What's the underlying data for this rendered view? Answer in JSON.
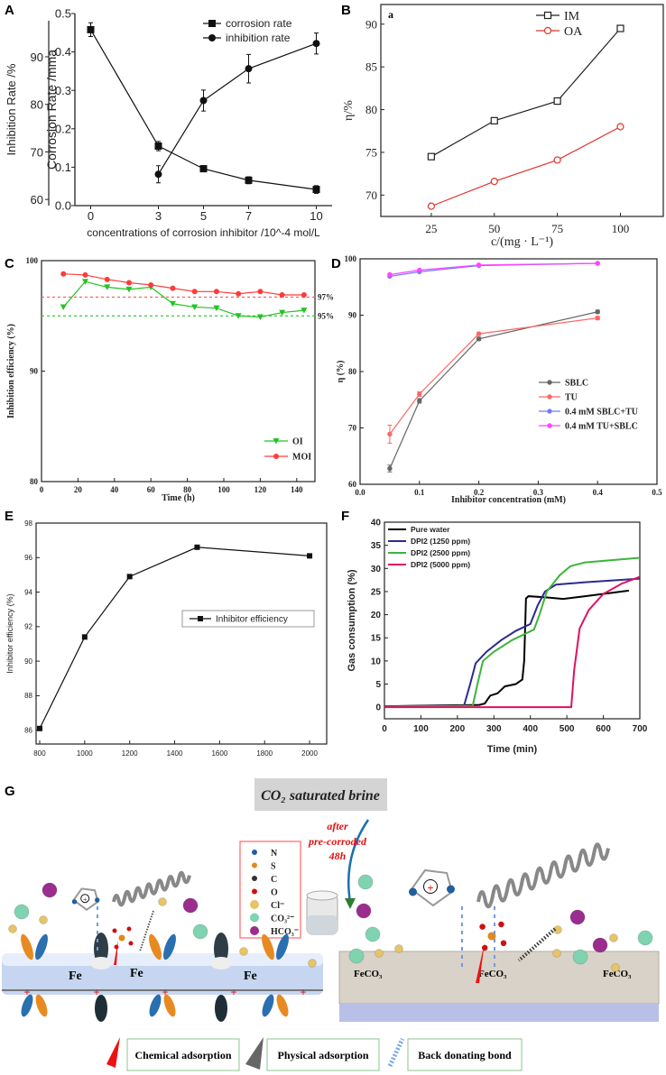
{
  "panel_labels": {
    "a": "A",
    "b": "B",
    "c": "C",
    "d": "D",
    "e": "E",
    "f": "F",
    "g": "G"
  },
  "chart_data": [
    {
      "panel": "A",
      "type": "line",
      "title": "",
      "xlabel": "concentrations of corrosion inhibitor /10^-4 mol/L",
      "ylabel": "Corrosion Rate /mma",
      "y2label": "Inhibition Rate /%",
      "xlim": [
        -0.7,
        10.7
      ],
      "ylim": [
        0,
        0.5
      ],
      "y2lim": [
        58.7,
        99.1
      ],
      "xticks": [
        0,
        3,
        5,
        7,
        10
      ],
      "xtick_labels": [
        "0",
        "3",
        "5",
        "7",
        "10"
      ],
      "yticks": [
        0,
        0.1,
        0.2,
        0.3,
        0.4,
        0.5
      ],
      "ytick_labels": [
        "0.0",
        "0.1",
        "0.2",
        "0.3",
        "0.4",
        "0.5"
      ],
      "y2ticks": [
        60,
        70,
        80,
        90
      ],
      "y2tick_labels": [
        "60",
        "70",
        "80",
        "90"
      ],
      "grid": false,
      "legend_position": "top-right",
      "series": [
        {
          "name": "corrosion rate",
          "color": "#111111",
          "marker": "square",
          "axis": "y",
          "x": [
            0,
            3,
            5,
            7,
            10
          ],
          "y": [
            0.458,
            0.155,
            0.096,
            0.066,
            0.042
          ],
          "yerr": [
            0.018,
            0.012,
            0.008,
            0.009,
            0.01
          ]
        },
        {
          "name": "inhibition rate",
          "color": "#111111",
          "marker": "dot",
          "axis": "y2",
          "x": [
            3,
            5,
            7,
            10
          ],
          "y": [
            65.3,
            80.8,
            87.5,
            92.8
          ],
          "yerr": [
            1.8,
            2.2,
            3.0,
            2.2
          ]
        }
      ]
    },
    {
      "panel": "B",
      "type": "line",
      "title": "",
      "annotation": "a",
      "xlabel": "c/(mg · L⁻¹)",
      "ylabel": "η/%",
      "xlim": [
        5,
        117
      ],
      "ylim": [
        67.5,
        92.3
      ],
      "xticks": [
        25,
        50,
        75,
        100
      ],
      "xtick_labels": [
        "25",
        "50",
        "75",
        "100"
      ],
      "yticks": [
        70,
        75,
        80,
        85,
        90
      ],
      "ytick_labels": [
        "70",
        "75",
        "80",
        "85",
        "90"
      ],
      "grid": false,
      "legend_position": "top-center",
      "series": [
        {
          "name": "IM",
          "color": "#222222",
          "marker": "open-square",
          "x": [
            25,
            50,
            75,
            100
          ],
          "y": [
            74.5,
            78.7,
            81.0,
            89.5
          ]
        },
        {
          "name": "OA",
          "color": "#e0342c",
          "marker": "open-circle",
          "x": [
            25,
            50,
            75,
            100
          ],
          "y": [
            68.7,
            71.6,
            74.1,
            78.0
          ]
        }
      ]
    },
    {
      "panel": "C",
      "type": "line",
      "title": "",
      "xlabel": "Time (h)",
      "ylabel": "Inhibition efficiency (%)",
      "xlim": [
        0,
        150
      ],
      "ylim": [
        80,
        100
      ],
      "xticks": [
        0,
        20,
        40,
        60,
        80,
        100,
        120,
        140
      ],
      "xtick_labels": [
        "0",
        "20",
        "40",
        "60",
        "80",
        "100",
        "120",
        "140"
      ],
      "yticks": [
        80,
        90,
        100
      ],
      "ytick_labels": [
        "80",
        "90",
        "100"
      ],
      "grid": false,
      "legend_position": "bottom-right",
      "ref_lines": [
        {
          "y": 96.7,
          "label": "97%",
          "color": "#ff5555"
        },
        {
          "y": 95.0,
          "label": "95%",
          "color": "#33cc33"
        }
      ],
      "series": [
        {
          "name": "OI",
          "color": "#22c322",
          "marker": "triangle-down",
          "x": [
            12,
            24,
            36,
            48,
            60,
            72,
            84,
            96,
            108,
            120,
            132,
            144
          ],
          "y": [
            95.8,
            98.1,
            97.6,
            97.4,
            97.6,
            96.1,
            95.8,
            95.7,
            95.0,
            94.9,
            95.3,
            95.5
          ]
        },
        {
          "name": "MOI",
          "color": "#ff3a3a",
          "marker": "dot",
          "x": [
            12,
            24,
            36,
            48,
            60,
            72,
            84,
            96,
            108,
            120,
            132,
            144
          ],
          "y": [
            98.8,
            98.7,
            98.3,
            98.0,
            97.8,
            97.5,
            97.2,
            97.2,
            97.0,
            97.2,
            96.9,
            96.9
          ]
        }
      ]
    },
    {
      "panel": "D",
      "type": "line",
      "title": "",
      "xlabel": "Inhibitor concentration (mM)",
      "ylabel": "η (%)",
      "xlim": [
        0,
        0.5
      ],
      "ylim": [
        60,
        100
      ],
      "xticks": [
        0,
        0.1,
        0.2,
        0.3,
        0.4,
        0.5
      ],
      "xtick_labels": [
        "0.0",
        "0.1",
        "0.2",
        "0.3",
        "0.4",
        "0.5"
      ],
      "yticks": [
        60,
        70,
        80,
        90,
        100
      ],
      "ytick_labels": [
        "60",
        "70",
        "80",
        "90",
        "100"
      ],
      "grid": false,
      "legend_position": "bottom-right",
      "series": [
        {
          "name": "SBLC",
          "color": "#666666",
          "marker": "small-circle",
          "x": [
            0.05,
            0.1,
            0.2,
            0.4
          ],
          "y": [
            62.8,
            74.8,
            85.8,
            90.6
          ],
          "yerr": [
            0.6,
            0.4,
            0.3,
            0.3
          ]
        },
        {
          "name": "TU",
          "color": "#ff6666",
          "marker": "small-circle",
          "x": [
            0.05,
            0.1,
            0.2,
            0.4
          ],
          "y": [
            68.9,
            76.0,
            86.7,
            89.5
          ],
          "yerr": [
            1.6,
            0.4,
            0.2,
            0.3
          ]
        },
        {
          "name": "0.4 mM SBLC+TU",
          "color": "#7777ff",
          "marker": "small-circle",
          "x": [
            0.05,
            0.1,
            0.2,
            0.4
          ],
          "y": [
            96.9,
            97.7,
            98.8,
            99.2
          ]
        },
        {
          "name": "0.4 mM TU+SBLC",
          "color": "#ff44ff",
          "marker": "small-circle",
          "x": [
            0.05,
            0.1,
            0.2,
            0.4
          ],
          "y": [
            97.2,
            98.0,
            98.9,
            99.2
          ]
        }
      ]
    },
    {
      "panel": "E",
      "type": "line",
      "title": "",
      "xlabel": "",
      "ylabel": "Inhibitor efficiency (%)",
      "xlim": [
        784,
        2076
      ],
      "ylim": [
        85.2,
        98
      ],
      "xticks": [
        800,
        1000,
        1200,
        1400,
        1600,
        1800,
        2000
      ],
      "xtick_labels": [
        "800",
        "1000",
        "1200",
        "1400",
        "1600",
        "1800",
        "2000"
      ],
      "yticks": [
        86,
        88,
        90,
        92,
        94,
        96,
        98
      ],
      "ytick_labels": [
        "86",
        "88",
        "90",
        "92",
        "94",
        "96",
        "98"
      ],
      "grid": false,
      "legend_position": "center-right",
      "series": [
        {
          "name": "Inhibitor efficiency",
          "color": "#111111",
          "marker": "square",
          "x": [
            800,
            1000,
            1200,
            1500,
            2000
          ],
          "y": [
            86.1,
            91.4,
            94.9,
            96.6,
            96.1
          ]
        }
      ]
    },
    {
      "panel": "F",
      "type": "line",
      "title": "",
      "xlabel": "Time (min)",
      "ylabel": "Gas consumption (%)",
      "xlim": [
        0,
        700
      ],
      "ylim": [
        -2.5,
        40
      ],
      "xticks": [
        0,
        100,
        200,
        300,
        400,
        500,
        600,
        700
      ],
      "xtick_labels": [
        "0",
        "100",
        "200",
        "300",
        "400",
        "500",
        "600",
        "700"
      ],
      "yticks": [
        0,
        5,
        10,
        15,
        20,
        25,
        30,
        35,
        40
      ],
      "ytick_labels": [
        "0",
        "5",
        "10",
        "15",
        "20",
        "25",
        "30",
        "35",
        "40"
      ],
      "grid": false,
      "legend_position": "top-left",
      "series": [
        {
          "name": "Pure water",
          "color": "#000000",
          "marker": "none",
          "x": [
            0,
            260,
            275,
            290,
            310,
            330,
            360,
            378,
            383,
            388,
            395,
            450,
            490,
            550,
            620,
            670
          ],
          "y": [
            0.2,
            0.5,
            0.8,
            2.5,
            3,
            4.5,
            5,
            6,
            10,
            23.5,
            24,
            23.7,
            23.4,
            24,
            24.7,
            25.2
          ]
        },
        {
          "name": "DPI2 (1250 ppm)",
          "color": "#2b2a8f",
          "marker": "none",
          "x": [
            0,
            218,
            235,
            250,
            280,
            320,
            360,
            400,
            420,
            440,
            470,
            550,
            700
          ],
          "y": [
            0.2,
            0.3,
            5,
            9.5,
            12,
            14.5,
            16.5,
            18,
            22,
            25,
            26.5,
            27,
            27.8
          ]
        },
        {
          "name": "DPI2 (2500 ppm)",
          "color": "#3cb43c",
          "marker": "none",
          "x": [
            0,
            242,
            255,
            270,
            300,
            350,
            410,
            425,
            445,
            480,
            510,
            550,
            700
          ],
          "y": [
            0.1,
            0.3,
            5,
            10,
            12,
            14.5,
            16.8,
            20,
            25,
            28.5,
            30.5,
            31.3,
            32.3
          ]
        },
        {
          "name": "DPI2 (5000 ppm)",
          "color": "#e0115f",
          "marker": "none",
          "x": [
            0,
            512,
            520,
            535,
            560,
            600,
            650,
            700
          ],
          "y": [
            0,
            0,
            8,
            17,
            21,
            24.5,
            26.7,
            28.2
          ]
        }
      ]
    }
  ],
  "diagram_g": {
    "header": "CO₂ saturated brine",
    "arrow_note": [
      "after",
      "pre-corroded",
      "48h"
    ],
    "legend": [
      {
        "symbol": "N",
        "color": "#1f5f9e"
      },
      {
        "symbol": "S",
        "color": "#e08a1e"
      },
      {
        "symbol": "C",
        "color": "#333333"
      },
      {
        "symbol": "O",
        "color": "#cc1111"
      },
      {
        "symbol": "Cl⁻",
        "color": "#e6c46a"
      },
      {
        "symbol": "CO₃²⁻",
        "color": "#7fd3b0"
      },
      {
        "symbol": "HCO₃⁻",
        "color": "#9b2d8f"
      }
    ],
    "left_surface_labels": [
      "Fe",
      "Fe",
      "Fe"
    ],
    "right_surface_labels": [
      "FeCO₃",
      "FeCO₃",
      "FeCO₃"
    ],
    "bottom_legend": [
      "Chemical adsorption",
      "Physical adsorption",
      "Back donating bond"
    ]
  }
}
